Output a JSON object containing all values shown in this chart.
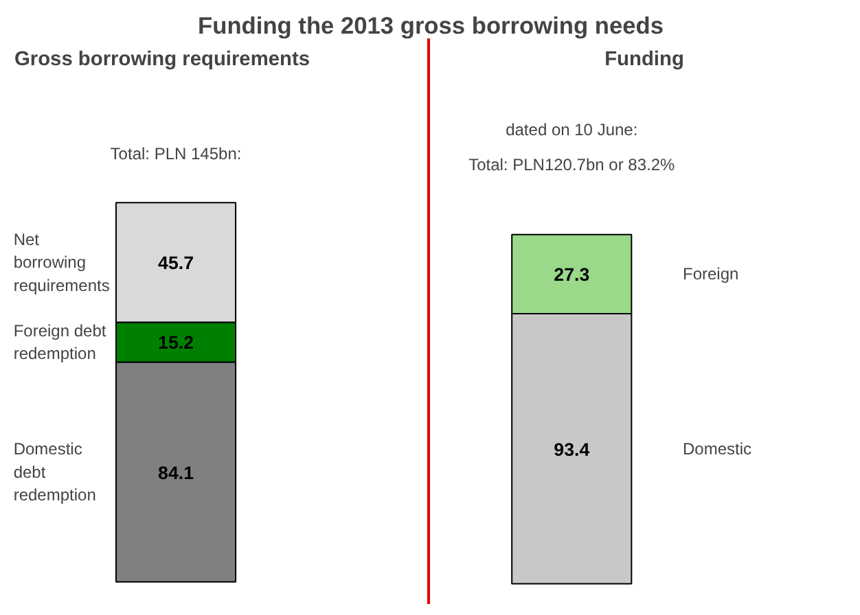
{
  "chart_data": [
    {
      "type": "bar",
      "title": "Funding the 2013 gross borrowing needs",
      "subtitle": "Gross borrowing requirements",
      "categories": [
        null
      ],
      "stacked": true,
      "data_labels": true,
      "grid": false,
      "tick_labels": false,
      "annotations": [
        "Total: PLN 145bn:"
      ],
      "series": [
        {
          "name": "Domestic debt redemption",
          "color": "#808080",
          "values": [
            84.1
          ]
        },
        {
          "name": "Foreign debt redemption",
          "color": "#008000",
          "values": [
            15.2
          ]
        },
        {
          "name": "Net borrowing requirements",
          "color": "#d9d9d9",
          "values": [
            45.7
          ]
        }
      ]
    },
    {
      "type": "bar",
      "subtitle": "Funding",
      "categories": [
        null
      ],
      "stacked": true,
      "data_labels": true,
      "grid": false,
      "tick_labels": false,
      "annotations": [
        "dated on 10 June:",
        "Total: PLN120.7bn or 83.2%"
      ],
      "series": [
        {
          "name": "Domestic",
          "color": "#c8c8c8",
          "values": [
            93.4
          ]
        },
        {
          "name": "Foreign",
          "color": "#9ad98a",
          "values": [
            27.3
          ]
        }
      ]
    }
  ]
}
